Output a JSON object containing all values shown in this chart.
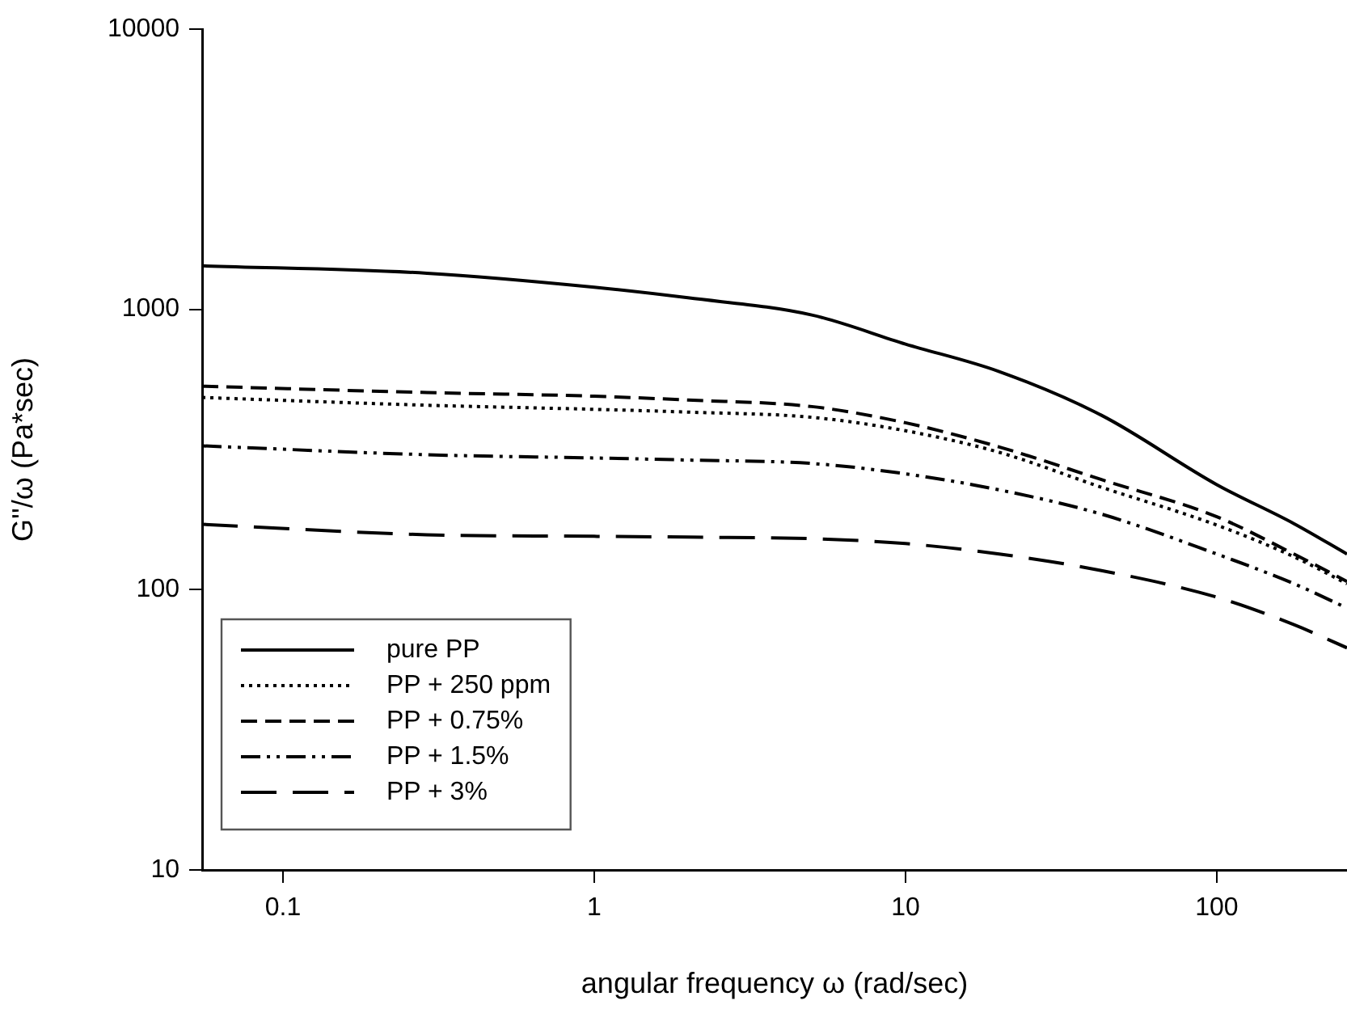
{
  "chart_data": {
    "type": "line",
    "xlabel": "angular frequency ω (rad/sec)",
    "ylabel": "G''/ω (Pa*sec)",
    "log": "xy",
    "grid": false,
    "legend": "bottom left",
    "marker": "none",
    "xlim": [
      0.055,
      262
    ],
    "ylim": [
      10,
      10000
    ],
    "xticks": [
      0.1,
      1,
      10,
      100
    ],
    "yticks": [
      10,
      100,
      1000,
      10000
    ],
    "x": [
      0.055,
      0.29,
      1,
      2,
      5,
      10,
      20,
      42.6,
      100,
      177,
      262
    ],
    "series": [
      {
        "name": "pure PP",
        "color": "#000000",
        "line_style": "solid",
        "values": [
          1430,
          1346,
          1200,
          1100,
          955,
          752,
          600,
          419,
          237,
          172,
          134
        ]
      },
      {
        "name": "PP + 250 ppm",
        "color": "#000000",
        "line_style": "dotted",
        "values": [
          485,
          455,
          440,
          430,
          412,
          369,
          309,
          232,
          170,
          131,
          105
        ]
      },
      {
        "name": "PP + 0.75%",
        "color": "#000000",
        "line_style": "dashed",
        "values": [
          532,
          505,
          490,
          475,
          450,
          394,
          323,
          247,
          182,
          134,
          107
        ]
      },
      {
        "name": "PP + 1.5%",
        "color": "#000000",
        "line_style": "dashdot",
        "values": [
          326,
          303,
          295,
          290,
          282,
          259,
          227,
          186,
          134,
          105,
          86
        ]
      },
      {
        "name": "PP + 3%",
        "color": "#000000",
        "line_style": "longdash",
        "values": [
          171,
          157,
          155,
          154,
          152,
          146,
          134,
          117,
          94,
          75,
          62
        ]
      }
    ]
  }
}
